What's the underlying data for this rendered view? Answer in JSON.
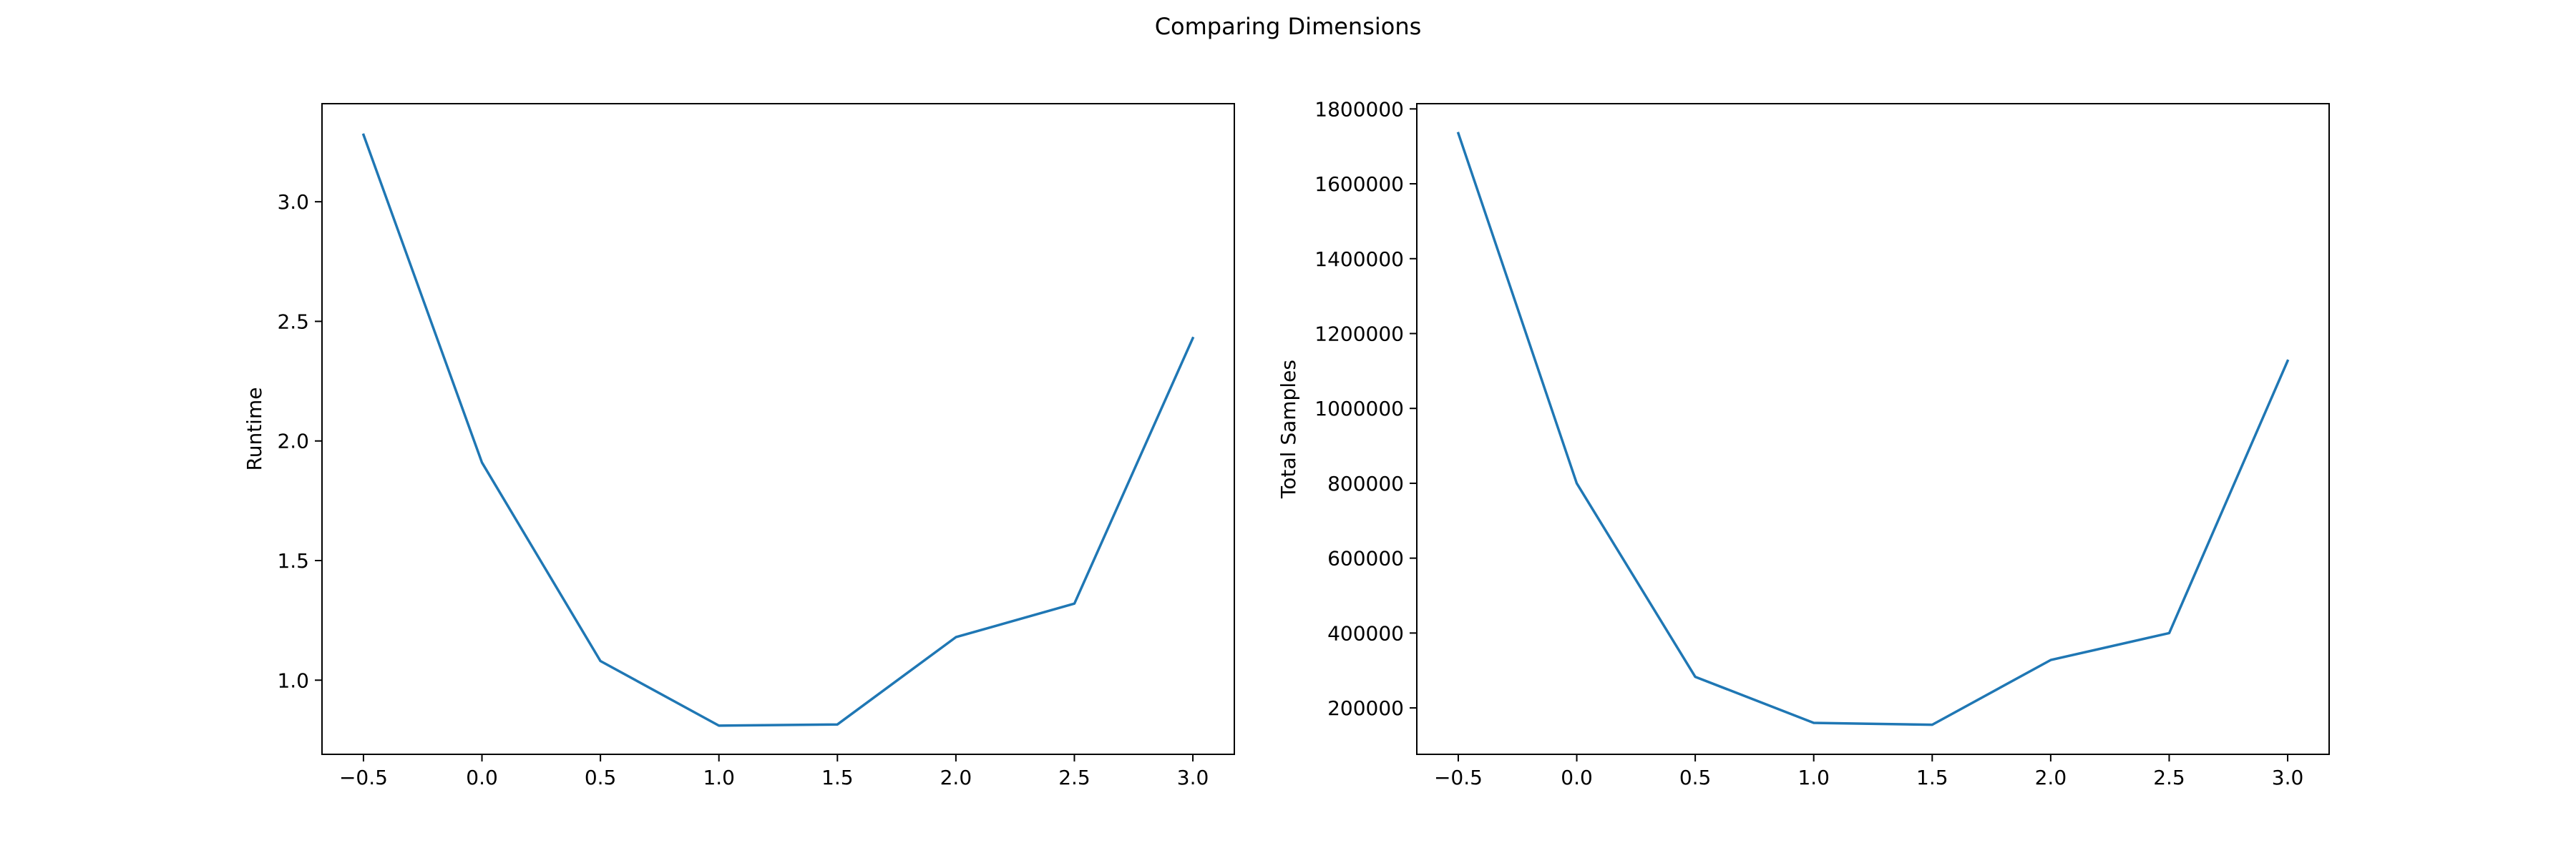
{
  "figure": {
    "title": "Comparing Dimensions"
  },
  "line_color": "#1f77b4",
  "chart_data": [
    {
      "type": "line",
      "title": "",
      "xlabel": "",
      "ylabel": "Runtime",
      "x": [
        -0.5,
        0.0,
        0.5,
        1.0,
        1.5,
        2.0,
        2.5,
        3.0
      ],
      "series": [
        {
          "values": [
            3.28,
            1.91,
            1.08,
            0.81,
            0.815,
            1.18,
            1.32,
            2.43
          ]
        }
      ],
      "xlim": [
        -0.675,
        3.175
      ],
      "ylim": [
        0.69,
        3.41
      ],
      "xticks": [
        -0.5,
        0.0,
        0.5,
        1.0,
        1.5,
        2.0,
        2.5,
        3.0
      ],
      "xtick_labels": [
        "−0.5",
        "0.0",
        "0.5",
        "1.0",
        "1.5",
        "2.0",
        "2.5",
        "3.0"
      ],
      "yticks": [
        1.0,
        1.5,
        2.0,
        2.5,
        3.0
      ],
      "ytick_labels": [
        "1.0",
        "1.5",
        "2.0",
        "2.5",
        "3.0"
      ],
      "grid": false,
      "legend": "none"
    },
    {
      "type": "line",
      "title": "",
      "xlabel": "",
      "ylabel": "Total Samples",
      "x": [
        -0.5,
        0.0,
        0.5,
        1.0,
        1.5,
        2.0,
        2.5,
        3.0
      ],
      "series": [
        {
          "values": [
            1735000,
            800000,
            283000,
            160000,
            155000,
            328000,
            400000,
            1127000
          ]
        }
      ],
      "xlim": [
        -0.675,
        3.175
      ],
      "ylim": [
        76000,
        1814000
      ],
      "xticks": [
        -0.5,
        0.0,
        0.5,
        1.0,
        1.5,
        2.0,
        2.5,
        3.0
      ],
      "xtick_labels": [
        "−0.5",
        "0.0",
        "0.5",
        "1.0",
        "1.5",
        "2.0",
        "2.5",
        "3.0"
      ],
      "yticks": [
        200000,
        400000,
        600000,
        800000,
        1000000,
        1200000,
        1400000,
        1600000,
        1800000
      ],
      "ytick_labels": [
        "200000",
        "400000",
        "600000",
        "800000",
        "1000000",
        "1200000",
        "1400000",
        "1600000",
        "1800000"
      ],
      "grid": false,
      "legend": "none"
    }
  ]
}
